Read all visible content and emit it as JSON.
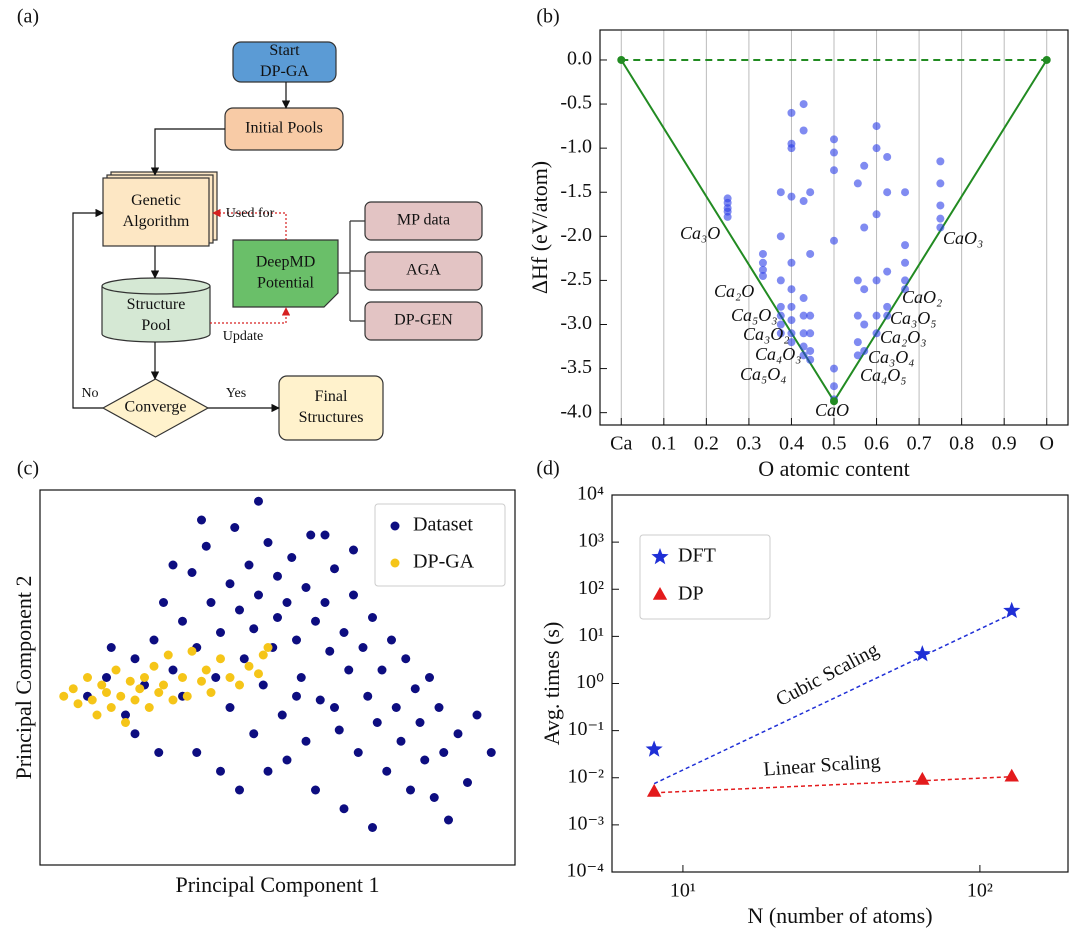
{
  "diagram": {
    "panel": "(a)",
    "nodes": [
      {
        "label": [
          "Start",
          "DP-GA"
        ]
      },
      {
        "label": [
          "Initial Pools"
        ]
      },
      {
        "label": [
          "Genetic",
          "Algorithm"
        ]
      },
      {
        "label": [
          "Structure",
          "Pool"
        ]
      },
      {
        "label": [
          "Converge"
        ]
      },
      {
        "label": [
          "Final",
          "Structures"
        ]
      },
      {
        "label": [
          "DeepMD",
          "Potential"
        ]
      },
      {
        "label": [
          "MP data"
        ]
      },
      {
        "label": [
          "AGA"
        ]
      },
      {
        "label": [
          "DP-GEN"
        ]
      }
    ],
    "edge_labels": [
      "Used for",
      "Update",
      "No",
      "Yes"
    ]
  },
  "chart_data": [
    {
      "panel": "(b)",
      "type": "scatter",
      "x_label": "O atomic content",
      "y_label": "ΔHf (eV/atom)",
      "xlim": [
        -0.05,
        1.05
      ],
      "ylim": [
        -4.14,
        0.34
      ],
      "grid": "x",
      "xticks": [
        {
          "value": 0,
          "label": "Ca"
        },
        0.1,
        0.2,
        0.3,
        0.4,
        0.5,
        0.6,
        0.7,
        0.8,
        0.9,
        {
          "value": 1,
          "label": "O"
        }
      ],
      "yticks": [
        {
          "value": 0,
          "label": "0.0"
        },
        -0.5,
        {
          "value": -1,
          "label": "-1.0"
        },
        -1.5,
        {
          "value": -2,
          "label": "-2.0"
        },
        -2.5,
        {
          "value": -3,
          "label": "-3.0"
        },
        -3.5,
        {
          "value": -4,
          "label": "-4.0"
        }
      ],
      "series": [
        {
          "color": "#2b3ee8",
          "x": [
            0.25,
            0.25,
            0.25,
            0.25,
            0.25,
            0.333,
            0.333,
            0.333,
            0.333,
            0.375,
            0.375,
            0.375,
            0.375,
            0.375,
            0.375,
            0.375,
            0.4,
            0.4,
            0.4,
            0.4,
            0.4,
            0.4,
            0.4,
            0.4,
            0.4,
            0.4,
            0.4286,
            0.4286,
            0.4286,
            0.4286,
            0.4286,
            0.4286,
            0.4286,
            0.4286,
            0.444,
            0.444,
            0.444,
            0.444,
            0.444,
            0.444,
            0.5,
            0.5,
            0.5,
            0.5,
            0.5,
            0.5,
            0.5,
            0.556,
            0.556,
            0.556,
            0.556,
            0.556,
            0.571,
            0.571,
            0.571,
            0.571,
            0.571,
            0.6,
            0.6,
            0.6,
            0.6,
            0.6,
            0.6,
            0.625,
            0.625,
            0.625,
            0.625,
            0.625,
            0.667,
            0.667,
            0.667,
            0.667,
            0.667,
            0.75,
            0.75,
            0.75,
            0.75,
            0.75
          ],
          "values": [
            -1.57,
            -1.62,
            -1.68,
            -1.72,
            -1.78,
            -2.2,
            -2.3,
            -2.38,
            -2.45,
            -1.5,
            -2.0,
            -2.5,
            -2.8,
            -2.9,
            -3.0,
            -3.1,
            -0.6,
            -0.95,
            -1.0,
            -1.55,
            -2.3,
            -2.6,
            -2.8,
            -2.95,
            -3.1,
            -3.2,
            -0.5,
            -0.8,
            -1.6,
            -2.7,
            -2.9,
            -3.1,
            -3.25,
            -3.35,
            -1.5,
            -2.2,
            -2.9,
            -3.1,
            -3.3,
            -3.4,
            -0.9,
            -1.05,
            -1.25,
            -2.05,
            -3.5,
            -3.7,
            -3.85,
            -1.4,
            -2.5,
            -2.9,
            -3.2,
            -3.35,
            -1.2,
            -1.9,
            -2.6,
            -3.0,
            -3.3,
            -0.75,
            -1.0,
            -1.75,
            -2.5,
            -2.9,
            -3.1,
            -1.1,
            -1.5,
            -2.4,
            -2.8,
            -2.9,
            -1.5,
            -2.1,
            -2.3,
            -2.5,
            -2.6,
            -1.15,
            -1.4,
            -1.65,
            -1.8,
            -1.9
          ]
        }
      ],
      "hull": {
        "color": "#228b22",
        "x": [
          0,
          0.5,
          1
        ],
        "values": [
          0,
          -3.87,
          0
        ]
      },
      "annotations": [
        "Ca₃O",
        "Ca₂O",
        "Ca₅O₃",
        "Ca₃O₂",
        "Ca₄O₃",
        "Ca₅O₄",
        "CaO",
        "Ca₄O₅",
        "Ca₃O₄",
        "Ca₂O₃",
        "Ca₃O₅",
        "CaO₂",
        "CaO₃"
      ]
    },
    {
      "panel": "(c)",
      "type": "scatter",
      "x_label": "Principal Component 1",
      "y_label": "Principal Component 2",
      "xlim": [
        0,
        100
      ],
      "ylim": [
        0,
        100
      ],
      "legend": "upper right",
      "series": [
        {
          "name": "Dataset",
          "color": "#0d0d80",
          "x": [
            10,
            14,
            18,
            20,
            22,
            24,
            26,
            28,
            30,
            30,
            32,
            33,
            35,
            36,
            37,
            38,
            40,
            40,
            41,
            42,
            43,
            44,
            45,
            46,
            47,
            48,
            49,
            50,
            50,
            51,
            52,
            53,
            54,
            55,
            56,
            57,
            58,
            59,
            60,
            61,
            62,
            63,
            64,
            65,
            66,
            67,
            68,
            69,
            70,
            71,
            72,
            73,
            74,
            75,
            76,
            77,
            78,
            79,
            80,
            81,
            82,
            83,
            84,
            85,
            86,
            88,
            90,
            92,
            95,
            33,
            38,
            45,
            52,
            58,
            64,
            70,
            20,
            25,
            15,
            28,
            34,
            46,
            60,
            66,
            72,
            56,
            48,
            42,
            62,
            54
          ],
          "values": [
            45,
            50,
            40,
            55,
            48,
            60,
            70,
            52,
            65,
            45,
            78,
            58,
            85,
            70,
            50,
            62,
            75,
            42,
            90,
            68,
            55,
            80,
            63,
            72,
            48,
            86,
            58,
            77,
            66,
            40,
            70,
            82,
            60,
            50,
            74,
            88,
            65,
            44,
            70,
            57,
            79,
            36,
            62,
            52,
            72,
            30,
            58,
            45,
            66,
            38,
            52,
            25,
            60,
            42,
            33,
            55,
            20,
            47,
            38,
            28,
            50,
            18,
            42,
            30,
            12,
            35,
            22,
            40,
            30,
            30,
            25,
            35,
            28,
            20,
            15,
            10,
            35,
            30,
            58,
            80,
            92,
            97,
            88,
            84,
            78,
            33,
            25,
            20,
            42,
            45
          ]
        },
        {
          "name": "DP-GA",
          "color": "#f5c518",
          "x": [
            5,
            7,
            8,
            10,
            11,
            12,
            13,
            14,
            15,
            16,
            17,
            18,
            19,
            20,
            21,
            22,
            23,
            24,
            25,
            26,
            27,
            28,
            30,
            31,
            32,
            34,
            35,
            36,
            38,
            40,
            42,
            44,
            46,
            47,
            48
          ],
          "values": [
            45,
            47,
            43,
            50,
            44,
            40,
            48,
            46,
            42,
            52,
            45,
            38,
            49,
            44,
            47,
            50,
            42,
            53,
            46,
            48,
            56,
            44,
            50,
            45,
            57,
            49,
            52,
            46,
            55,
            50,
            48,
            53,
            51,
            56,
            58
          ]
        }
      ]
    },
    {
      "panel": "(d)",
      "type": "scatter",
      "x_label": "N (number of atoms)",
      "y_label": "Avg. times (s)",
      "xscale": "log",
      "yscale": "log",
      "xlim": [
        5.77,
        198
      ],
      "ylim": [
        0.0001,
        10000
      ],
      "legend": "upper left",
      "xticks": [
        {
          "value": 10,
          "label": "10¹"
        },
        {
          "value": 100,
          "label": "10²"
        }
      ],
      "yticks": [
        {
          "value": 0.0001,
          "label": "10⁻⁴"
        },
        {
          "value": 0.001,
          "label": "10⁻³"
        },
        {
          "value": 0.01,
          "label": "10⁻²"
        },
        {
          "value": 0.1,
          "label": "10⁻¹"
        },
        {
          "value": 1,
          "label": "10⁰"
        },
        {
          "value": 10,
          "label": "10¹"
        },
        {
          "value": 100,
          "label": "10²"
        },
        {
          "value": 1000,
          "label": "10³"
        },
        {
          "value": 10000,
          "label": "10⁴"
        }
      ],
      "series": [
        {
          "name": "DFT",
          "color": "#1f2fd6",
          "marker": "star",
          "x": [
            8,
            64,
            128
          ],
          "values": [
            0.04,
            4.2,
            35
          ]
        },
        {
          "name": "DP",
          "color": "#e31a1c",
          "marker": "triangle",
          "x": [
            8,
            64,
            128
          ],
          "values": [
            0.005,
            0.009,
            0.0105
          ]
        }
      ],
      "fits": [
        {
          "label": "Cubic Scaling",
          "color": "#1f2fd6",
          "x": [
            8,
            128
          ],
          "values": [
            0.0075,
            30
          ]
        },
        {
          "label": "Linear Scaling",
          "color": "#e31a1c",
          "x": [
            8,
            128
          ],
          "values": [
            0.0048,
            0.0105
          ]
        }
      ]
    }
  ]
}
